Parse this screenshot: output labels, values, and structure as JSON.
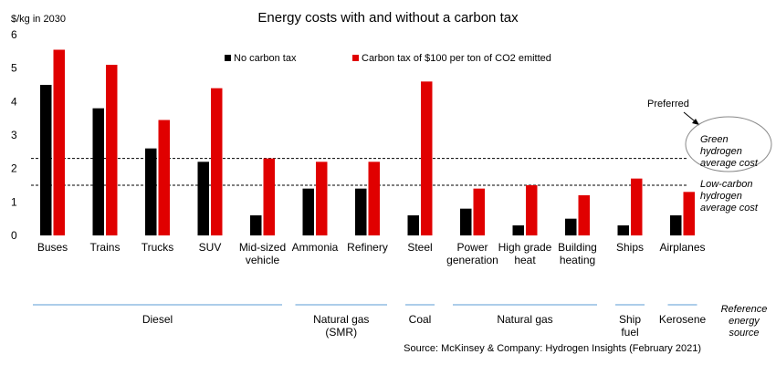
{
  "colors": {
    "no_tax": "#000000",
    "tax": "#e00000",
    "ref_line": "#5b9bd5",
    "dashed": "#000000"
  },
  "chart_data": {
    "type": "bar",
    "title": "Energy costs with and without a carbon tax",
    "ylabel": "$/kg in 2030",
    "ylim": [
      0,
      6
    ],
    "yticks": [
      "0",
      "1",
      "2",
      "3",
      "4",
      "5",
      "6"
    ],
    "categories": [
      [
        "Buses"
      ],
      [
        "Trains"
      ],
      [
        "Trucks"
      ],
      [
        "SUV"
      ],
      [
        "Mid-sized",
        "vehicle"
      ],
      [
        "Ammonia"
      ],
      [
        "Refinery"
      ],
      [
        "Steel"
      ],
      [
        "Power",
        "generation"
      ],
      [
        "High grade",
        "heat"
      ],
      [
        "Building",
        "heating"
      ],
      [
        "Ships"
      ],
      [
        "Airplanes"
      ]
    ],
    "series": [
      {
        "name": "No carbon tax",
        "values": [
          4.5,
          3.8,
          2.6,
          2.2,
          0.6,
          1.4,
          1.4,
          0.6,
          0.8,
          0.3,
          0.5,
          0.3,
          0.6
        ]
      },
      {
        "name": "Carbon tax of $100 per ton of CO2 emitted",
        "values": [
          5.55,
          5.1,
          3.45,
          4.4,
          2.3,
          2.2,
          2.2,
          4.6,
          1.4,
          1.5,
          1.2,
          1.7,
          1.3
        ]
      }
    ],
    "reference_lines": [
      {
        "value": 2.3,
        "label": [
          "Green",
          "hydrogen",
          "average cost"
        ]
      },
      {
        "value": 1.5,
        "label": [
          "Low-carbon",
          "hydrogen",
          "average cost"
        ]
      }
    ],
    "annotations": {
      "preferred": "Preferred"
    },
    "reference_sources": {
      "title": [
        "Reference",
        "energy",
        "source"
      ],
      "groups": [
        {
          "label": [
            "Diesel"
          ],
          "from": 0,
          "to": 4
        },
        {
          "label": [
            "Natural gas",
            "(SMR)"
          ],
          "from": 5,
          "to": 6
        },
        {
          "label": [
            "Coal"
          ],
          "from": 7,
          "to": 7
        },
        {
          "label": [
            "Natural gas"
          ],
          "from": 8,
          "to": 10
        },
        {
          "label": [
            "Ship",
            "fuel"
          ],
          "from": 11,
          "to": 11
        },
        {
          "label": [
            "Kerosene"
          ],
          "from": 12,
          "to": 12
        }
      ]
    },
    "source": "Source: McKinsey & Company: Hydrogen Insights (February 2021)"
  }
}
